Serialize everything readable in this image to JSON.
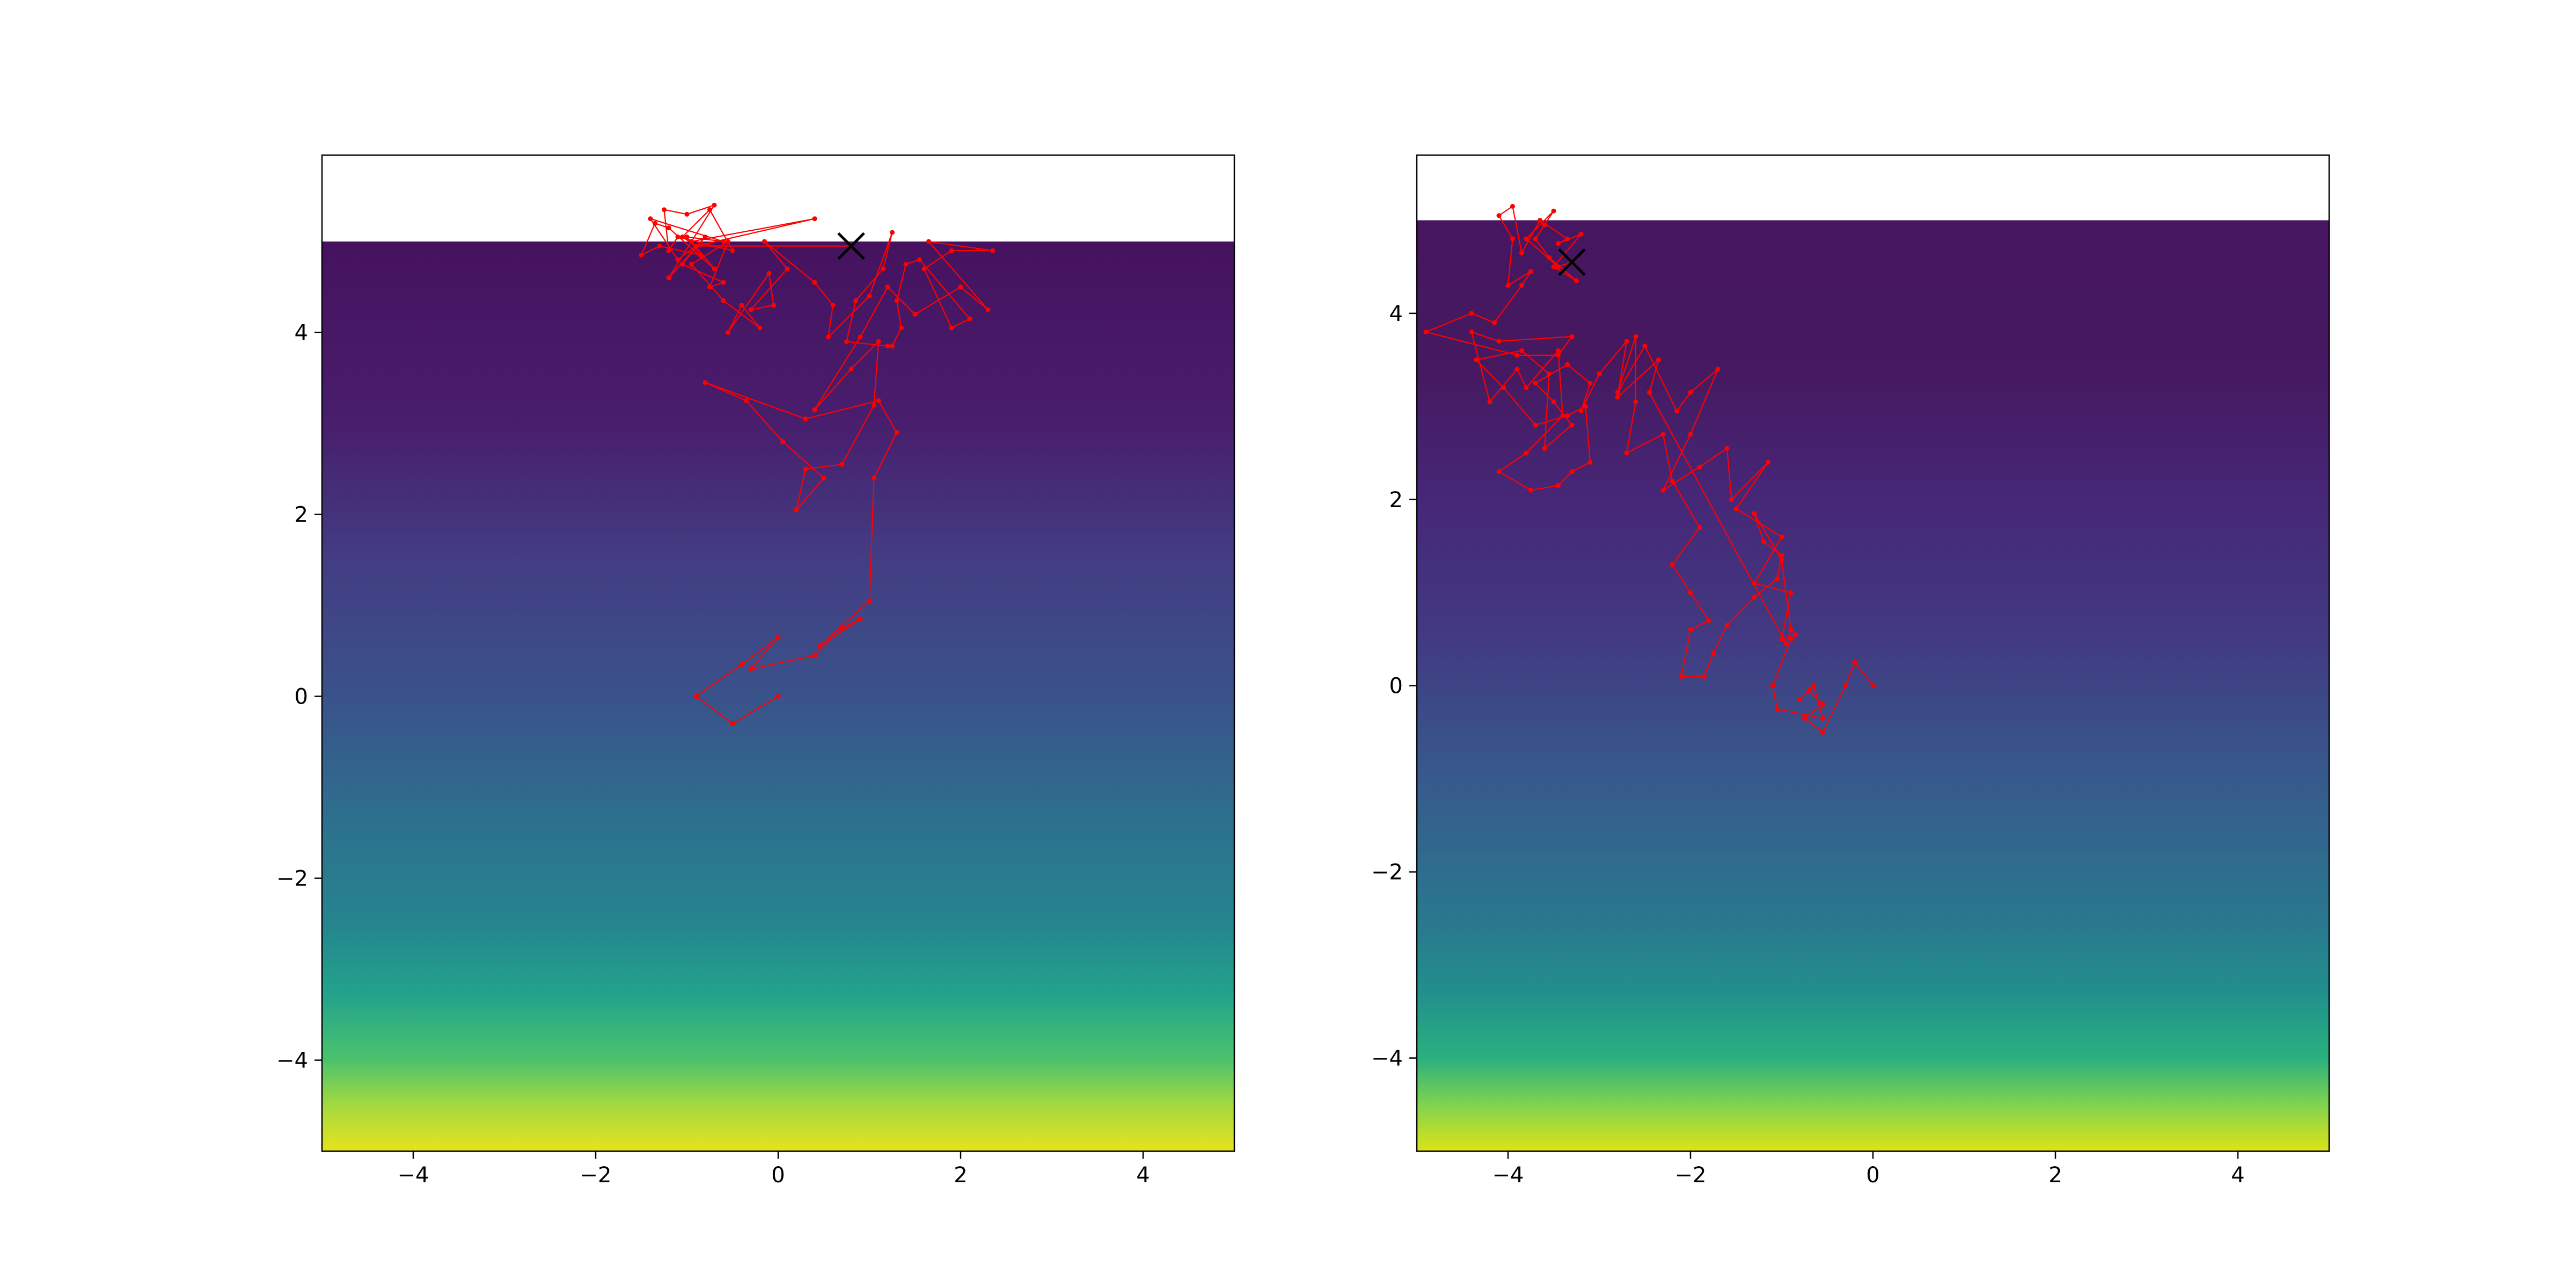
{
  "figure": {
    "background": "#ffffff"
  },
  "chart_data": [
    {
      "type": "heatmap",
      "title": "",
      "xlabel": "",
      "ylabel": "",
      "xlim": [
        -5,
        5
      ],
      "ylim": [
        -5,
        5.95
      ],
      "field_ylim": [
        -5,
        5
      ],
      "x_ticks": [
        -4,
        -2,
        0,
        2,
        4
      ],
      "y_ticks": [
        -4,
        -2,
        0,
        2,
        4
      ],
      "x_tick_labels": [
        "−4",
        "−2",
        "0",
        "2",
        "4"
      ],
      "y_tick_labels": [
        "−4",
        "−2",
        "0",
        "2",
        "4"
      ],
      "grid": false,
      "colormap": "viridis",
      "background_gradient": [
        {
          "y": 5.0,
          "color": "#46125f"
        },
        {
          "y": 3.0,
          "color": "#481e6d"
        },
        {
          "y": 1.5,
          "color": "#433d83"
        },
        {
          "y": 0.0,
          "color": "#3a528b"
        },
        {
          "y": -1.5,
          "color": "#2c738e"
        },
        {
          "y": -2.5,
          "color": "#25858e"
        },
        {
          "y": -3.3,
          "color": "#23a48b"
        },
        {
          "y": -4.0,
          "color": "#4cc26c"
        },
        {
          "y": -4.5,
          "color": "#a5d93f"
        },
        {
          "y": -5.0,
          "color": "#e6e31d"
        }
      ],
      "marker": {
        "x": 0.8,
        "y": 4.95,
        "symbol": "x",
        "color": "#000000"
      },
      "series": [
        {
          "color": "#ff0000",
          "points": [
            [
              0,
              0
            ],
            [
              -0.5,
              -0.3
            ],
            [
              -0.9,
              0
            ],
            [
              -0.4,
              0.35
            ],
            [
              0,
              0.65
            ],
            [
              -0.3,
              0.3
            ],
            [
              0.4,
              0.45
            ],
            [
              0.7,
              0.75
            ],
            [
              0.9,
              0.85
            ],
            [
              0.45,
              0.55
            ],
            [
              1.0,
              1.05
            ],
            [
              1.05,
              2.4
            ],
            [
              1.3,
              2.9
            ],
            [
              1.1,
              3.25
            ],
            [
              0.3,
              3.05
            ],
            [
              -0.8,
              3.45
            ],
            [
              -0.35,
              3.25
            ],
            [
              0.05,
              2.8
            ],
            [
              0.5,
              2.4
            ],
            [
              0.2,
              2.05
            ],
            [
              0.3,
              2.5
            ],
            [
              0.7,
              2.55
            ],
            [
              1.05,
              3.2
            ],
            [
              1.1,
              3.9
            ],
            [
              0.8,
              3.6
            ],
            [
              0.4,
              3.15
            ],
            [
              0.9,
              3.95
            ],
            [
              1.2,
              4.5
            ],
            [
              1.5,
              4.2
            ],
            [
              2.0,
              4.5
            ],
            [
              2.3,
              4.25
            ],
            [
              1.65,
              5.0
            ],
            [
              2.35,
              4.9
            ],
            [
              1.9,
              4.9
            ],
            [
              1.6,
              4.7
            ],
            [
              1.9,
              4.05
            ],
            [
              2.1,
              4.15
            ],
            [
              1.55,
              4.8
            ],
            [
              1.4,
              4.75
            ],
            [
              1.3,
              4.35
            ],
            [
              1.35,
              4.05
            ],
            [
              1.25,
              3.85
            ],
            [
              1.2,
              3.85
            ],
            [
              0.75,
              3.9
            ],
            [
              0.85,
              4.35
            ],
            [
              1.15,
              4.7
            ],
            [
              1.25,
              5.1
            ],
            [
              1.0,
              4.4
            ],
            [
              0.55,
              3.95
            ],
            [
              0.6,
              4.3
            ],
            [
              0.4,
              4.55
            ],
            [
              -0.15,
              5.0
            ],
            [
              0.1,
              4.7
            ],
            [
              -0.3,
              4.25
            ],
            [
              -0.05,
              4.3
            ],
            [
              -0.1,
              4.65
            ],
            [
              -0.55,
              4.0
            ],
            [
              -0.4,
              4.3
            ],
            [
              -0.2,
              4.05
            ],
            [
              -0.6,
              4.35
            ],
            [
              -0.95,
              4.75
            ],
            [
              -0.55,
              5.0
            ],
            [
              -0.75,
              4.5
            ],
            [
              -0.6,
              4.55
            ],
            [
              -1.05,
              4.75
            ],
            [
              -0.8,
              5.05
            ],
            [
              -1.2,
              4.6
            ],
            [
              -0.7,
              5.4
            ],
            [
              -1.0,
              5.3
            ],
            [
              -1.25,
              5.35
            ],
            [
              -1.2,
              4.9
            ],
            [
              -1.1,
              5.05
            ],
            [
              -0.5,
              4.9
            ],
            [
              -0.75,
              5.35
            ],
            [
              -1.05,
              5.05
            ],
            [
              -0.9,
              4.95
            ],
            [
              -1.1,
              4.8
            ],
            [
              -1.4,
              5.25
            ],
            [
              -0.6,
              5.0
            ],
            [
              -1.0,
              5.05
            ],
            [
              -0.85,
              4.85
            ],
            [
              -1.3,
              4.95
            ],
            [
              -1.5,
              4.85
            ],
            [
              -1.35,
              5.2
            ],
            [
              -1.2,
              5.15
            ],
            [
              -0.7,
              4.7
            ],
            [
              -0.95,
              5.0
            ],
            [
              0.4,
              5.25
            ],
            [
              -0.9,
              4.95
            ],
            [
              0.8,
              4.95
            ]
          ]
        }
      ]
    },
    {
      "type": "heatmap",
      "title": "",
      "xlabel": "",
      "ylabel": "",
      "xlim": [
        -5,
        5
      ],
      "ylim": [
        -5,
        5.7
      ],
      "field_ylim": [
        -5,
        5
      ],
      "x_ticks": [
        -4,
        -2,
        0,
        2,
        4
      ],
      "y_ticks": [
        -4,
        -2,
        0,
        2,
        4
      ],
      "x_tick_labels": [
        "−4",
        "−2",
        "0",
        "2",
        "4"
      ],
      "y_tick_labels": [
        "−4",
        "−2",
        "0",
        "2",
        "4"
      ],
      "grid": false,
      "colormap": "viridis",
      "background_gradient": [
        {
          "y": 5.0,
          "color": "#461760"
        },
        {
          "y": 3.5,
          "color": "#46185f"
        },
        {
          "y": 2.0,
          "color": "#462777"
        },
        {
          "y": 0.5,
          "color": "#423a82"
        },
        {
          "y": -1.0,
          "color": "#375a8c"
        },
        {
          "y": -2.5,
          "color": "#2a778e"
        },
        {
          "y": -3.3,
          "color": "#21908c"
        },
        {
          "y": -4.0,
          "color": "#2ab07f"
        },
        {
          "y": -4.5,
          "color": "#80d34f"
        },
        {
          "y": -5.0,
          "color": "#dde318"
        }
      ],
      "marker": {
        "x": -3.3,
        "y": 4.55,
        "symbol": "x",
        "color": "#000000"
      },
      "series": [
        {
          "color": "#ff0000",
          "points": [
            [
              0,
              0
            ],
            [
              -0.2,
              0.25
            ],
            [
              -0.3,
              0
            ],
            [
              -0.55,
              -0.5
            ],
            [
              -0.75,
              -0.35
            ],
            [
              -0.55,
              -0.2
            ],
            [
              -0.7,
              -0.05
            ],
            [
              -0.8,
              -0.15
            ],
            [
              -0.65,
              0
            ],
            [
              -0.55,
              -0.35
            ],
            [
              -1.05,
              -0.25
            ],
            [
              -1.1,
              0.0
            ],
            [
              -0.9,
              0.5
            ],
            [
              -0.85,
              0.55
            ],
            [
              -1.0,
              0.5
            ],
            [
              -0.9,
              1.0
            ],
            [
              -1.3,
              1.1
            ],
            [
              -1.0,
              1.6
            ],
            [
              -1.5,
              1.9
            ],
            [
              -1.15,
              2.4
            ],
            [
              -1.55,
              2.0
            ],
            [
              -1.6,
              2.55
            ],
            [
              -1.9,
              2.35
            ],
            [
              -2.3,
              2.1
            ],
            [
              -2.0,
              2.7
            ],
            [
              -1.7,
              3.4
            ],
            [
              -2.0,
              3.15
            ],
            [
              -2.15,
              2.95
            ],
            [
              -2.5,
              3.65
            ],
            [
              -2.8,
              3.15
            ],
            [
              -2.6,
              3.75
            ],
            [
              -2.6,
              3.05
            ],
            [
              -2.7,
              2.5
            ],
            [
              -2.3,
              2.7
            ],
            [
              -2.2,
              2.2
            ],
            [
              -1.9,
              1.7
            ],
            [
              -2.2,
              1.3
            ],
            [
              -2.0,
              1.0
            ],
            [
              -1.8,
              0.7
            ],
            [
              -2.0,
              0.6
            ],
            [
              -2.1,
              0.1
            ],
            [
              -1.85,
              0.1
            ],
            [
              -1.75,
              0.35
            ],
            [
              -1.6,
              0.65
            ],
            [
              -1.3,
              0.95
            ],
            [
              -1.05,
              1.15
            ],
            [
              -1.0,
              1.4
            ],
            [
              -1.2,
              1.55
            ],
            [
              -1.3,
              1.85
            ],
            [
              -1.0,
              1.35
            ],
            [
              -0.9,
              0.6
            ],
            [
              -0.95,
              0.45
            ],
            [
              -2.45,
              3.15
            ],
            [
              -2.35,
              3.5
            ],
            [
              -2.8,
              3.1
            ],
            [
              -2.7,
              3.7
            ],
            [
              -3.0,
              3.35
            ],
            [
              -3.2,
              2.95
            ],
            [
              -3.1,
              3.25
            ],
            [
              -3.35,
              3.45
            ],
            [
              -3.7,
              3.25
            ],
            [
              -3.5,
              3.05
            ],
            [
              -3.3,
              2.8
            ],
            [
              -3.6,
              2.55
            ],
            [
              -3.55,
              3.35
            ],
            [
              -3.85,
              3.6
            ],
            [
              -4.35,
              3.5
            ],
            [
              -4.05,
              3.2
            ],
            [
              -3.7,
              2.8
            ],
            [
              -3.35,
              2.9
            ],
            [
              -3.15,
              3.0
            ],
            [
              -3.1,
              2.4
            ],
            [
              -3.3,
              2.3
            ],
            [
              -3.45,
              2.15
            ],
            [
              -3.75,
              2.1
            ],
            [
              -4.1,
              2.3
            ],
            [
              -3.8,
              2.5
            ],
            [
              -3.4,
              2.9
            ],
            [
              -3.45,
              3.6
            ],
            [
              -3.8,
              3.2
            ],
            [
              -3.9,
              3.4
            ],
            [
              -4.2,
              3.05
            ],
            [
              -4.4,
              3.8
            ],
            [
              -4.1,
              3.7
            ],
            [
              -3.3,
              3.75
            ],
            [
              -3.45,
              3.55
            ],
            [
              -3.9,
              3.55
            ],
            [
              -4.9,
              3.8
            ],
            [
              -4.4,
              4.0
            ],
            [
              -4.15,
              3.9
            ],
            [
              -3.85,
              4.3
            ],
            [
              -3.75,
              4.45
            ],
            [
              -4.0,
              4.3
            ],
            [
              -3.95,
              4.8
            ],
            [
              -4.1,
              5.05
            ],
            [
              -3.95,
              5.15
            ],
            [
              -3.85,
              4.65
            ],
            [
              -3.65,
              5.0
            ],
            [
              -3.35,
              4.8
            ],
            [
              -3.45,
              4.75
            ],
            [
              -3.2,
              4.85
            ],
            [
              -3.5,
              4.5
            ],
            [
              -3.25,
              4.35
            ],
            [
              -3.55,
              4.6
            ],
            [
              -3.7,
              4.8
            ],
            [
              -3.6,
              4.95
            ],
            [
              -3.5,
              5.1
            ],
            [
              -3.8,
              4.8
            ],
            [
              -3.45,
              4.5
            ],
            [
              -3.3,
              4.55
            ]
          ]
        }
      ]
    }
  ]
}
